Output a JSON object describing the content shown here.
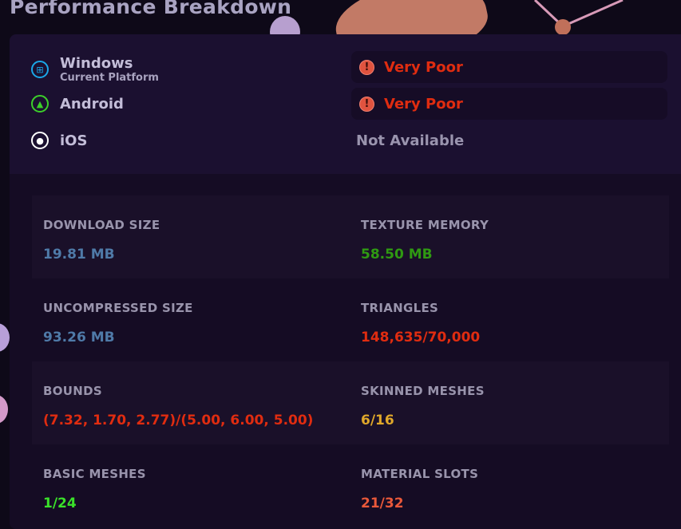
{
  "header": {
    "title": "Performance Breakdown"
  },
  "platforms": [
    {
      "name": "Windows",
      "subtitle": "Current Platform",
      "icon": "windows-icon",
      "icon_color": "#1aa7e8",
      "status": "Very Poor",
      "status_color": "#e02c10"
    },
    {
      "name": "Android",
      "icon": "android-icon",
      "icon_color": "#3ccf2a",
      "status": "Very Poor",
      "status_color": "#e02c10"
    },
    {
      "name": "iOS",
      "icon": "apple-icon",
      "icon_color": "#ffffff",
      "status": "Not Available"
    }
  ],
  "stats": [
    {
      "label": "DOWNLOAD SIZE",
      "value": "19.81 MB",
      "color": "#4f7aa8"
    },
    {
      "label": "TEXTURE MEMORY",
      "value": "58.50 MB",
      "color": "#2f9a12"
    },
    {
      "label": "UNCOMPRESSED SIZE",
      "value": "93.26 MB",
      "color": "#4f7aa8"
    },
    {
      "label": "TRIANGLES",
      "value": "148,635/70,000",
      "color": "#e02c10"
    },
    {
      "label": "BOUNDS",
      "value": "(7.32, 1.70, 2.77)/(5.00, 6.00, 5.00)",
      "color": "#e02c10"
    },
    {
      "label": "SKINNED MESHES",
      "value": "6/16",
      "color": "#e0a82a"
    },
    {
      "label": "BASIC MESHES",
      "value": "1/24",
      "color": "#3ae02a"
    },
    {
      "label": "MATERIAL SLOTS",
      "value": "21/32",
      "color": "#e8583a"
    }
  ]
}
